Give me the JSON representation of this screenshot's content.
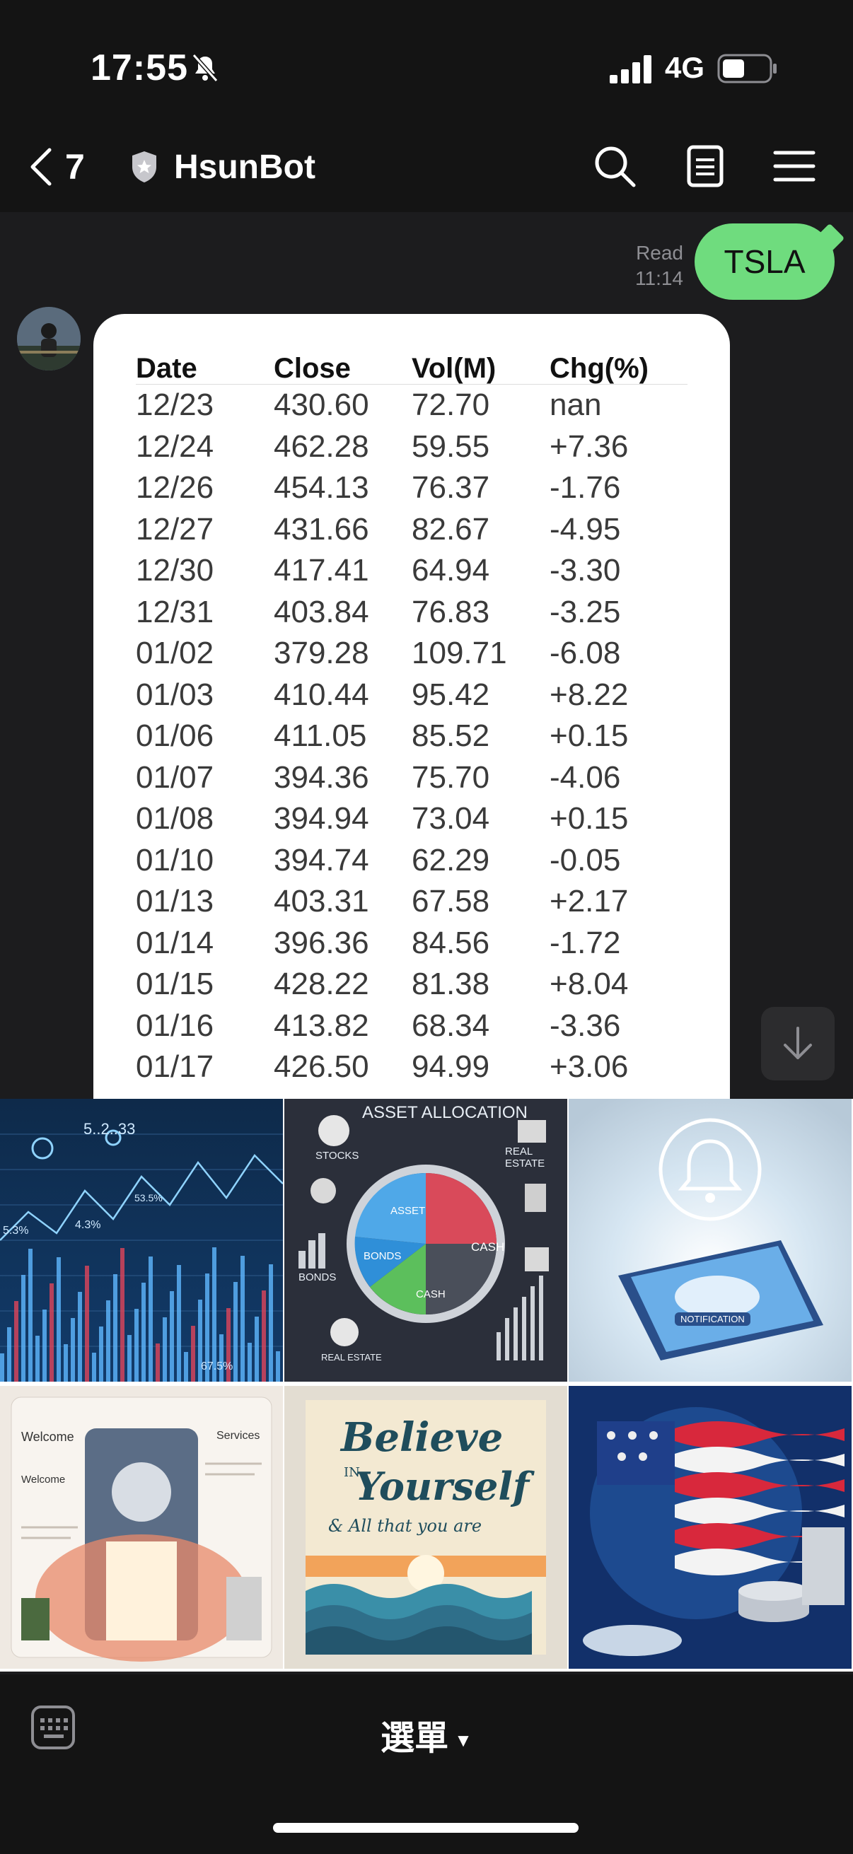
{
  "status_bar": {
    "time": "17:55",
    "network": "4G",
    "icons": [
      "bell-slash-icon",
      "signal-icon",
      "battery-icon"
    ]
  },
  "header": {
    "back_count": "7",
    "title": "HsunBot",
    "icons": [
      "shield-icon",
      "search-icon",
      "notes-icon",
      "menu-icon"
    ]
  },
  "chat": {
    "user_message": {
      "text": "TSLA",
      "status": "Read",
      "time": "11:14"
    },
    "bot_table": {
      "headers": [
        "Date",
        "Close",
        "Vol(M)",
        "Chg(%)"
      ],
      "rows": [
        [
          "12/23",
          "430.60",
          "72.70",
          "nan"
        ],
        [
          "12/24",
          "462.28",
          "59.55",
          "+7.36"
        ],
        [
          "12/26",
          "454.13",
          "76.37",
          "-1.76"
        ],
        [
          "12/27",
          "431.66",
          "82.67",
          "-4.95"
        ],
        [
          "12/30",
          "417.41",
          "64.94",
          "-3.30"
        ],
        [
          "12/31",
          "403.84",
          "76.83",
          "-3.25"
        ],
        [
          "01/02",
          "379.28",
          "109.71",
          "-6.08"
        ],
        [
          "01/03",
          "410.44",
          "95.42",
          "+8.22"
        ],
        [
          "01/06",
          "411.05",
          "85.52",
          "+0.15"
        ],
        [
          "01/07",
          "394.36",
          "75.70",
          "-4.06"
        ],
        [
          "01/08",
          "394.94",
          "73.04",
          "+0.15"
        ],
        [
          "01/10",
          "394.74",
          "62.29",
          "-0.05"
        ],
        [
          "01/13",
          "403.31",
          "67.58",
          "+2.17"
        ],
        [
          "01/14",
          "396.36",
          "84.56",
          "-1.72"
        ],
        [
          "01/15",
          "428.22",
          "81.38",
          "+8.04"
        ],
        [
          "01/16",
          "413.82",
          "68.34",
          "-3.36"
        ],
        [
          "01/17",
          "426.50",
          "94.99",
          "+3.06"
        ]
      ]
    }
  },
  "rich_menu": {
    "tiles": [
      {
        "id": "stock-chart",
        "labels": [
          "5..2..33",
          "5.3%",
          "4.3%",
          "53.5%",
          "67.5%"
        ]
      },
      {
        "id": "asset-allocation",
        "labels": [
          "ASSET ALLOCATION",
          "STOCKS",
          "REAL ESTATE",
          "BONDS",
          "CASH",
          "ASSET",
          "BONDS",
          "CASH",
          "REAL ESTATE"
        ]
      },
      {
        "id": "notification",
        "labels": [
          "NOTIFICATION"
        ]
      },
      {
        "id": "website",
        "labels": [
          "Welcome",
          "Services"
        ]
      },
      {
        "id": "believe",
        "labels": [
          "Believe",
          "IN",
          "Yourself",
          "& All that you are"
        ]
      },
      {
        "id": "usa-finance",
        "labels": []
      }
    ]
  },
  "bottom_bar": {
    "menu_label": "選單",
    "icons": [
      "keyboard-icon"
    ]
  },
  "colors": {
    "bubble": "#6fdc7e",
    "background": "#1c1c1e",
    "bar": "#141414"
  }
}
